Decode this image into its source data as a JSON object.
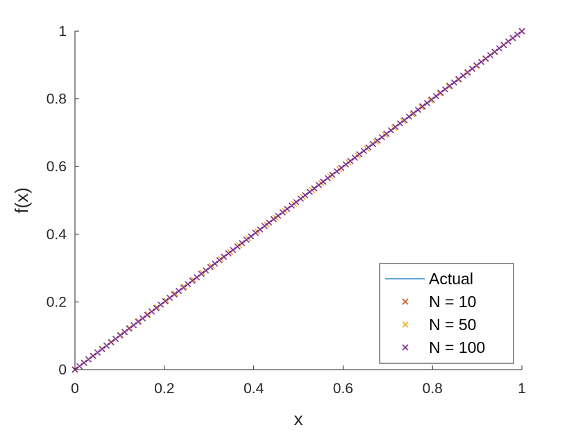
{
  "chart_data": {
    "type": "line",
    "title": "",
    "xlabel": "x",
    "ylabel": "f(x)",
    "xlim": [
      0,
      1
    ],
    "ylim": [
      0,
      1
    ],
    "xticks": [
      0,
      0.2,
      0.4,
      0.6,
      0.8,
      1
    ],
    "xtick_labels": [
      "0",
      "0.2",
      "0.4",
      "0.6",
      "0.8",
      "1"
    ],
    "yticks": [
      0,
      0.2,
      0.4,
      0.6,
      0.8,
      1
    ],
    "ytick_labels": [
      "0",
      "0.2",
      "0.4",
      "0.6",
      "0.8",
      "1"
    ],
    "grid": false,
    "legend_position": "bottom-right",
    "series": [
      {
        "name": "Actual",
        "style": "line",
        "color": "#0072BD",
        "function": "f(x)=x",
        "x": [
          0,
          1
        ],
        "y": [
          0,
          1
        ]
      },
      {
        "name": "N = 10",
        "style": "marker-x",
        "color": "#D95319",
        "function": "f(x)=x",
        "n_points": 10
      },
      {
        "name": "N = 50",
        "style": "marker-x",
        "color": "#EDB120",
        "function": "f(x)=x",
        "n_points": 50
      },
      {
        "name": "N = 100",
        "style": "marker-x",
        "color": "#7E2F8E",
        "function": "f(x)=x",
        "n_points": 100
      }
    ]
  }
}
